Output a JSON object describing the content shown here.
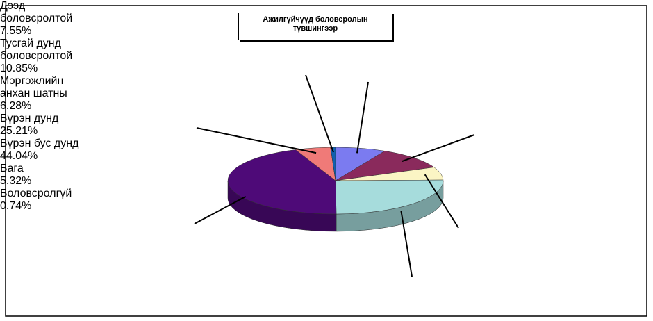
{
  "chart_data": {
    "type": "pie3d",
    "title": "Ажилгүйчүүд боловсролын түвшингээр",
    "categories": [
      "Дээд боловсролтой",
      "Тусгай дунд боловсролтой",
      "Мэргэжлийн анхан шатны",
      "Бүрэн дунд",
      "Бүрэн бус дунд",
      "Бага",
      "Боловсролгүй"
    ],
    "values": [
      7.55,
      10.85,
      6.28,
      25.21,
      44.04,
      5.32,
      0.74
    ],
    "value_labels": [
      "7.55%",
      "10.85%",
      "6.28%",
      "25.21%",
      "44.04%",
      "5.32%",
      "0.74%"
    ],
    "colors": [
      "#7b7bf0",
      "#8a2a5c",
      "#fbf5c4",
      "#a6dcdc",
      "#4e0a78",
      "#f07a78",
      "#1060b0"
    ]
  }
}
